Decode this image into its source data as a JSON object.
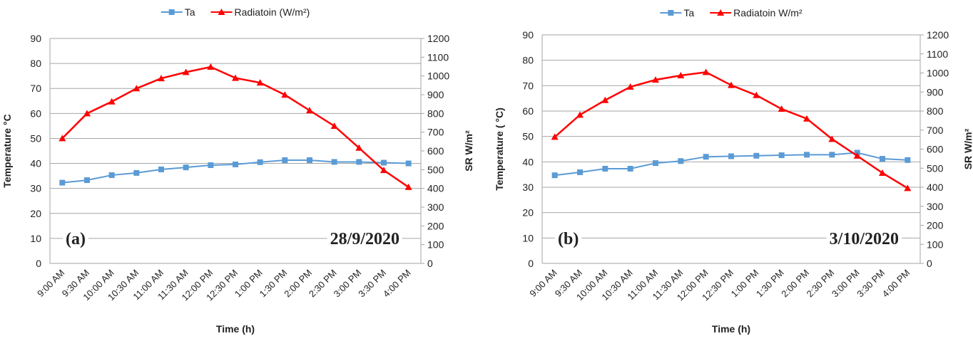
{
  "chart_data": [
    {
      "type": "line",
      "categories": [
        "9:00 AM",
        "9:30 AM",
        "10:00 AM",
        "10:30 AM",
        "11:00 AM",
        "11:30 AM",
        "12:00 PM",
        "12:30 PM",
        "1:00 PM",
        "1:30 PM",
        "2:00 PM",
        "2:30 PM",
        "3:00 PM",
        "3:30 PM",
        "4:00 PM"
      ],
      "series": [
        {
          "name": "Ta",
          "color": "#5b9bd5",
          "marker": "square",
          "values": [
            32.3,
            33.3,
            35.3,
            36.2,
            37.6,
            38.4,
            39.3,
            39.6,
            40.5,
            41.3,
            41.3,
            40.6,
            40.6,
            40.3,
            40.0
          ]
        },
        {
          "name": "Radiatoin  (W/m²)",
          "color": "#ff0000",
          "marker": "triangle",
          "axis": "y2",
          "values": [
            667,
            800,
            863,
            933,
            987,
            1020,
            1048,
            989,
            964,
            899,
            816,
            733,
            616,
            497,
            407
          ]
        }
      ],
      "ylim": [
        0,
        90
      ],
      "yticks": [
        0,
        10,
        20,
        30,
        40,
        50,
        60,
        70,
        80,
        90
      ],
      "y2lim": [
        0,
        1200
      ],
      "y2ticks": [
        0,
        100,
        200,
        300,
        400,
        500,
        600,
        700,
        800,
        900,
        1000,
        1100,
        1200
      ],
      "grid": true,
      "x_label": "Time (h)",
      "y_label": "Temperature °C",
      "y2_label": "SR  W/m²",
      "annotations": [
        "(a)",
        "28/9/2020"
      ]
    },
    {
      "type": "line",
      "categories": [
        "9:00 AM",
        "9:30 AM",
        "10:00 AM",
        "10:30 AM",
        "11:00 AM",
        "11:30 AM",
        "12:00 PM",
        "12:30 PM",
        "1:00 PM",
        "1:30 PM",
        "2:00 PM",
        "2:30 PM",
        "3:00 PM",
        "3:30 PM",
        "4:00 PM"
      ],
      "series": [
        {
          "name": "Ta",
          "color": "#5b9bd5",
          "marker": "square",
          "values": [
            34.7,
            35.9,
            37.3,
            37.3,
            39.5,
            40.3,
            42.0,
            42.2,
            42.4,
            42.6,
            42.8,
            42.8,
            43.6,
            41.2,
            40.7
          ]
        },
        {
          "name": "Radiatoin  W/m²",
          "color": "#ff0000",
          "marker": "triangle",
          "axis": "y2",
          "values": [
            664,
            780,
            857,
            927,
            964,
            987,
            1004,
            936,
            883,
            811,
            760,
            653,
            565,
            475,
            395
          ]
        }
      ],
      "ylim": [
        0,
        90
      ],
      "yticks": [
        0,
        10,
        20,
        30,
        40,
        50,
        60,
        70,
        80,
        90
      ],
      "y2lim": [
        0,
        1200
      ],
      "y2ticks": [
        0,
        100,
        200,
        300,
        400,
        500,
        600,
        700,
        800,
        900,
        1000,
        1100,
        1200
      ],
      "grid": true,
      "x_label": "Time (h)",
      "y_label": "Temperature ( °C)",
      "y2_label": "SR  W/m²",
      "annotations": [
        "(b)",
        "3/10/2020"
      ]
    }
  ]
}
